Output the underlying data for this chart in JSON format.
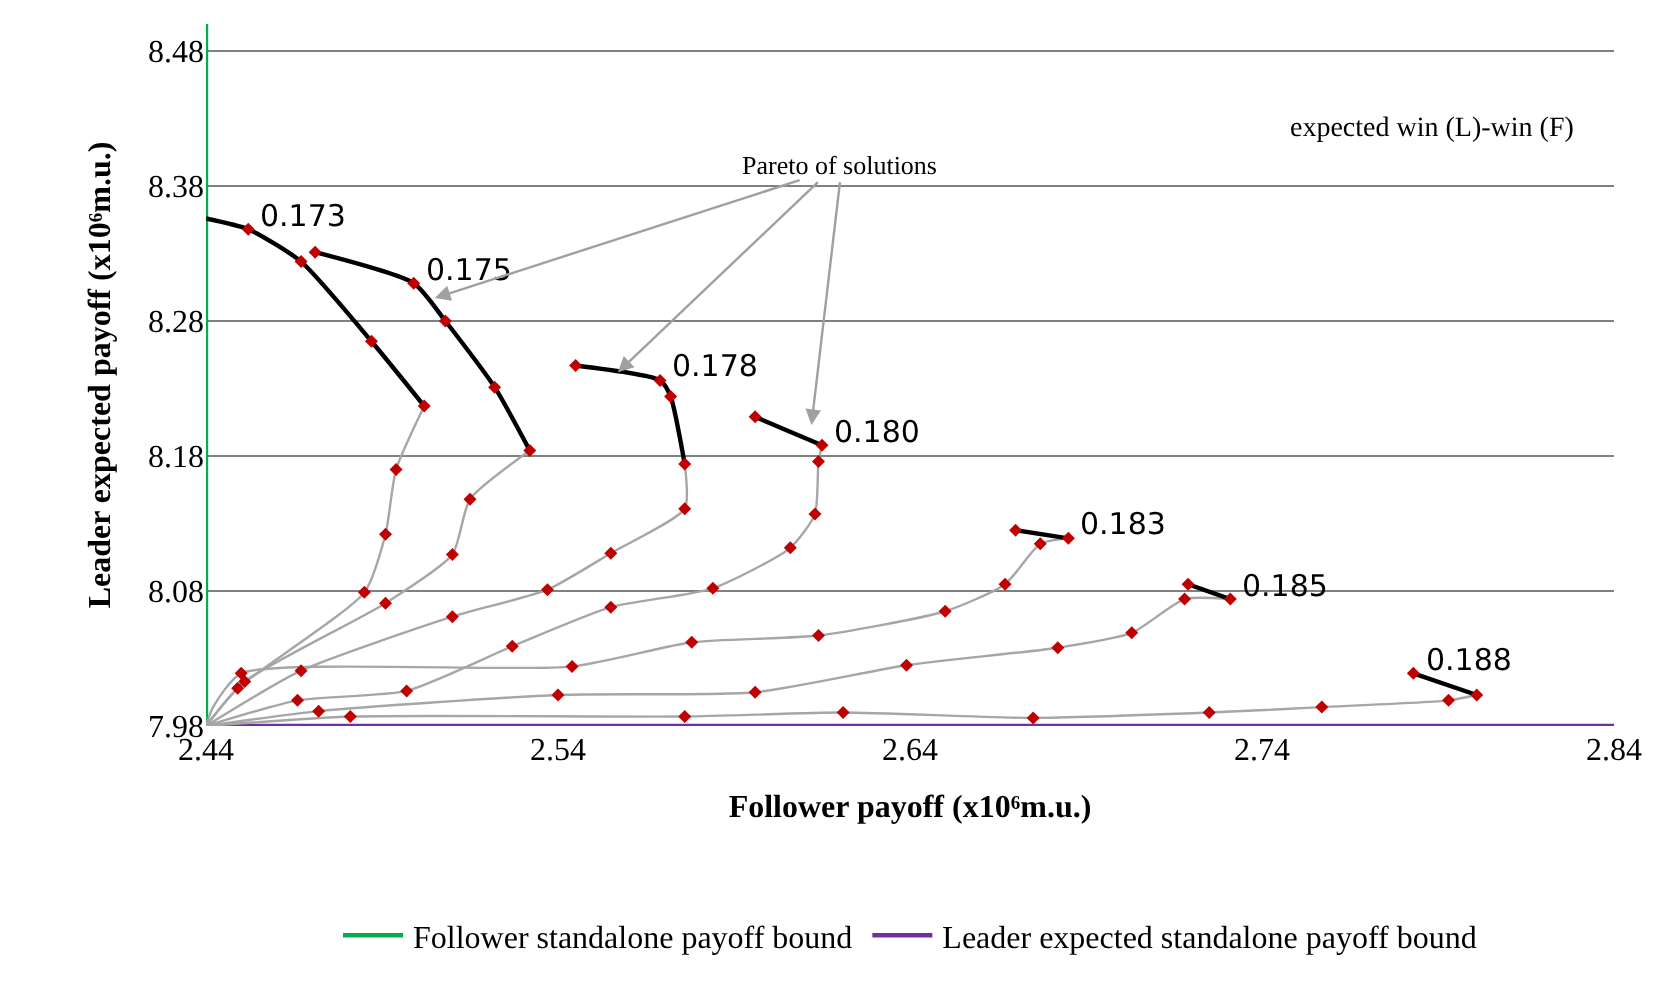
{
  "chart_data": {
    "type": "line",
    "xlabel": "Follower payoff (x10⁶m.u.)",
    "ylabel": "Leader expected payoff (x10⁶m.u.)",
    "xlim": [
      2.44,
      2.84
    ],
    "xticks": [
      2.44,
      2.54,
      2.64,
      2.74,
      2.84
    ],
    "ylim": [
      7.98,
      8.5
    ],
    "yticks": [
      7.98,
      8.08,
      8.18,
      8.28,
      8.38,
      8.48
    ],
    "grid": "y",
    "legend": "bottom",
    "marker": "none",
    "line_style": "solid",
    "series": [
      {
        "name": "Follower standalone payoff bound",
        "color": "#00b050",
        "x": [
          2.44,
          2.44
        ],
        "values": [
          7.98,
          8.5
        ]
      },
      {
        "name": "Leader expected standalone payoff bound",
        "color": "#7030a0",
        "x": [
          2.44,
          2.84
        ],
        "values": [
          7.98,
          7.98
        ]
      },
      {
        "color": "#a6a6a6",
        "x": [
          2.44,
          2.449,
          2.485,
          2.491,
          2.494,
          2.502
        ],
        "values": [
          7.98,
          8.008,
          8.079,
          8.122,
          8.17,
          8.217
        ]
      },
      {
        "color": "#a6a6a6",
        "x": [
          2.44,
          2.451,
          2.491,
          2.51,
          2.515,
          2.532
        ],
        "values": [
          7.98,
          8.013,
          8.071,
          8.107,
          8.148,
          8.184
        ]
      },
      {
        "color": "#a6a6a6",
        "x": [
          2.44,
          2.467,
          2.51,
          2.537,
          2.555,
          2.576,
          2.576
        ],
        "values": [
          7.98,
          8.021,
          8.061,
          8.081,
          8.108,
          8.141,
          8.174
        ]
      },
      {
        "color": "#a6a6a6",
        "x": [
          2.44,
          2.466,
          2.497,
          2.527,
          2.555,
          2.584,
          2.606,
          2.613,
          2.614,
          2.615
        ],
        "values": [
          7.98,
          7.999,
          8.006,
          8.039,
          8.068,
          8.082,
          8.112,
          8.137,
          8.176,
          8.188
        ]
      },
      {
        "color": "#a6a6a6",
        "x": [
          2.44,
          2.442,
          2.45,
          2.544,
          2.578,
          2.614,
          2.65,
          2.667,
          2.677,
          2.685
        ],
        "values": [
          7.98,
          7.994,
          8.019,
          8.024,
          8.042,
          8.047,
          8.065,
          8.085,
          8.115,
          8.119
        ]
      },
      {
        "color": "#a6a6a6",
        "x": [
          2.44,
          2.472,
          2.54,
          2.596,
          2.639,
          2.682,
          2.703,
          2.718,
          2.731
        ],
        "values": [
          7.98,
          7.991,
          8.003,
          8.005,
          8.025,
          8.038,
          8.049,
          8.074,
          8.074
        ]
      },
      {
        "color": "#a6a6a6",
        "x": [
          2.44,
          2.481,
          2.576,
          2.621,
          2.675,
          2.725,
          2.757,
          2.793,
          2.801
        ],
        "values": [
          7.98,
          7.987,
          7.987,
          7.99,
          7.986,
          7.99,
          7.994,
          7.999,
          8.003
        ]
      },
      {
        "color": "#000000",
        "x": [
          2.502,
          2.487,
          2.467,
          2.452,
          2.44
        ],
        "values": [
          8.217,
          8.265,
          8.324,
          8.348,
          8.356
        ]
      },
      {
        "color": "#000000",
        "x": [
          2.532,
          2.522,
          2.508,
          2.499,
          2.471
        ],
        "values": [
          8.184,
          8.231,
          8.28,
          8.308,
          8.331
        ]
      },
      {
        "color": "#000000",
        "x": [
          2.576,
          2.572,
          2.569,
          2.545
        ],
        "values": [
          8.174,
          8.224,
          8.236,
          8.247
        ]
      },
      {
        "color": "#000000",
        "x": [
          2.615,
          2.596
        ],
        "values": [
          8.188,
          8.209
        ]
      },
      {
        "color": "#000000",
        "x": [
          2.685,
          2.67
        ],
        "values": [
          8.119,
          8.125
        ]
      },
      {
        "color": "#000000",
        "x": [
          2.731,
          2.719
        ],
        "values": [
          8.074,
          8.085
        ]
      },
      {
        "color": "#000000",
        "x": [
          2.801,
          2.783
        ],
        "values": [
          8.003,
          8.019
        ]
      },
      {
        "type": "scatter",
        "marker": "diamond",
        "color": "#c00000",
        "x": [
          2.449,
          2.485,
          2.491,
          2.494,
          2.502,
          2.487,
          2.467,
          2.452,
          2.451,
          2.491,
          2.51,
          2.515,
          2.532,
          2.522,
          2.508,
          2.499,
          2.471,
          2.467,
          2.51,
          2.537,
          2.555,
          2.576,
          2.576,
          2.572,
          2.569,
          2.545,
          2.466,
          2.497,
          2.527,
          2.555,
          2.584,
          2.606,
          2.613,
          2.614,
          2.615,
          2.596,
          2.45,
          2.544,
          2.578,
          2.614,
          2.65,
          2.667,
          2.677,
          2.685,
          2.67,
          2.472,
          2.54,
          2.596,
          2.639,
          2.682,
          2.703,
          2.718,
          2.731,
          2.719,
          2.481,
          2.576,
          2.621,
          2.675,
          2.725,
          2.757,
          2.793,
          2.801,
          2.783
        ],
        "values": [
          8.008,
          8.079,
          8.122,
          8.17,
          8.217,
          8.265,
          8.324,
          8.348,
          8.013,
          8.071,
          8.107,
          8.148,
          8.184,
          8.231,
          8.28,
          8.308,
          8.331,
          8.021,
          8.061,
          8.081,
          8.108,
          8.141,
          8.174,
          8.224,
          8.236,
          8.247,
          7.999,
          8.006,
          8.039,
          8.068,
          8.082,
          8.112,
          8.137,
          8.176,
          8.188,
          8.209,
          8.019,
          8.024,
          8.042,
          8.047,
          8.065,
          8.085,
          8.115,
          8.119,
          8.125,
          7.991,
          8.003,
          8.005,
          8.025,
          8.038,
          8.049,
          8.074,
          8.074,
          8.085,
          7.987,
          7.987,
          7.99,
          7.986,
          7.99,
          7.994,
          7.999,
          8.003,
          8.019
        ]
      }
    ],
    "annotations": [
      {
        "text": "0.173",
        "x": 2.452,
        "y": 8.348
      },
      {
        "text": "0.175",
        "x": 2.499,
        "y": 8.308
      },
      {
        "text": "0.178",
        "x": 2.569,
        "y": 8.236
      },
      {
        "text": "0.180",
        "x": 2.615,
        "y": 8.188
      },
      {
        "text": "0.183",
        "x": 2.685,
        "y": 8.119
      },
      {
        "text": "0.185",
        "x": 2.731,
        "y": 8.074
      },
      {
        "text": "0.188",
        "x": 2.783,
        "y": 8.019
      },
      "expected win (L)-win (F)",
      {
        "text": "Pareto of solutions",
        "x": 2.557,
        "y": 8.242
      }
    ]
  }
}
